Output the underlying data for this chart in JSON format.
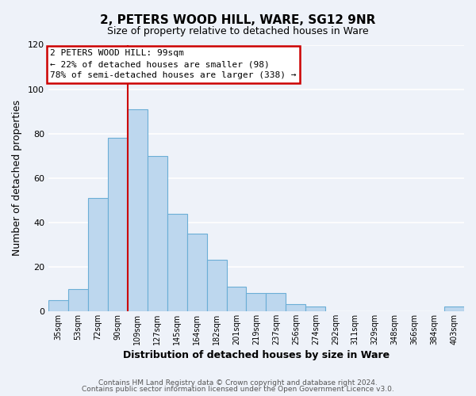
{
  "title": "2, PETERS WOOD HILL, WARE, SG12 9NR",
  "subtitle": "Size of property relative to detached houses in Ware",
  "xlabel": "Distribution of detached houses by size in Ware",
  "ylabel": "Number of detached properties",
  "bar_color": "#bdd7ee",
  "bar_edge_color": "#6baed6",
  "categories": [
    "35sqm",
    "53sqm",
    "72sqm",
    "90sqm",
    "109sqm",
    "127sqm",
    "145sqm",
    "164sqm",
    "182sqm",
    "201sqm",
    "219sqm",
    "237sqm",
    "256sqm",
    "274sqm",
    "292sqm",
    "311sqm",
    "329sqm",
    "348sqm",
    "366sqm",
    "384sqm",
    "403sqm"
  ],
  "values": [
    5,
    10,
    51,
    78,
    91,
    70,
    44,
    35,
    23,
    11,
    8,
    8,
    3,
    2,
    0,
    0,
    0,
    0,
    0,
    0,
    2
  ],
  "ylim": [
    0,
    120
  ],
  "yticks": [
    0,
    20,
    40,
    60,
    80,
    100,
    120
  ],
  "annotation_line1": "2 PETERS WOOD HILL: 99sqm",
  "annotation_line2": "← 22% of detached houses are smaller (98)",
  "annotation_line3": "78% of semi-detached houses are larger (338) →",
  "redline_x": 3.5,
  "redline_color": "#cc0000",
  "annotation_box_color": "#ffffff",
  "annotation_box_edge_color": "#cc0000",
  "footer_line1": "Contains HM Land Registry data © Crown copyright and database right 2024.",
  "footer_line2": "Contains public sector information licensed under the Open Government Licence v3.0.",
  "background_color": "#eef2f9",
  "grid_color": "#ffffff"
}
